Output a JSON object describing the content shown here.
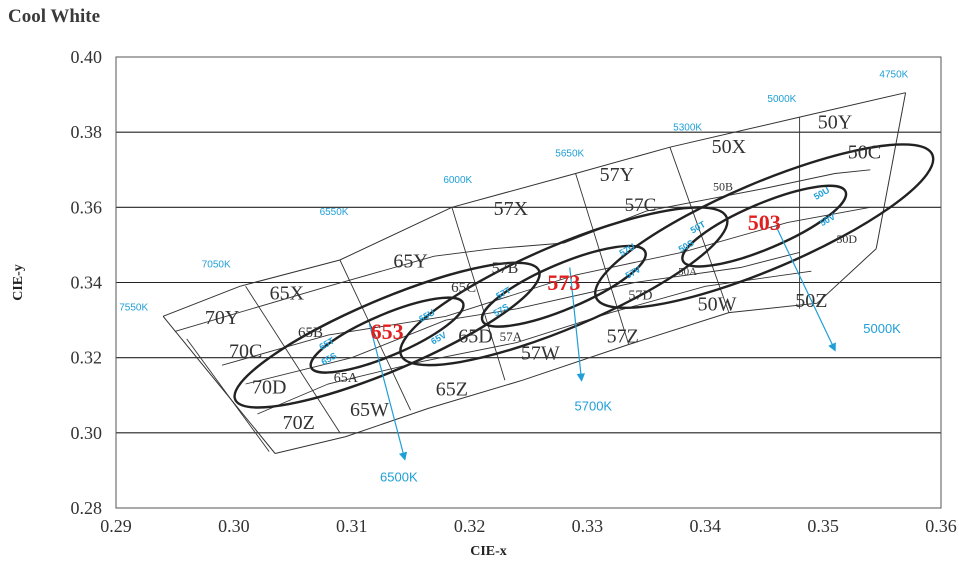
{
  "title": "Cool White",
  "chart_data": {
    "type": "scatter",
    "title": "Cool White",
    "xlabel": "CIE-x",
    "ylabel": "CIE-y",
    "xlim": [
      0.29,
      0.36
    ],
    "ylim": [
      0.28,
      0.4
    ],
    "x_ticks": [
      "0.29",
      "0.30",
      "0.31",
      "0.32",
      "0.33",
      "0.34",
      "0.35",
      "0.36"
    ],
    "y_ticks": [
      "0.28",
      "0.30",
      "0.32",
      "0.34",
      "0.36",
      "0.38",
      "0.40"
    ],
    "grid": "horizontal",
    "bounds_top": [
      [
        0.294,
        0.331
      ],
      [
        0.3005,
        0.339
      ],
      [
        0.309,
        0.346
      ],
      [
        0.3185,
        0.36
      ],
      [
        0.329,
        0.369
      ],
      [
        0.337,
        0.376
      ],
      [
        0.348,
        0.384
      ],
      [
        0.357,
        0.3905
      ]
    ],
    "bounds_bottom": [
      [
        0.3035,
        0.2945
      ],
      [
        0.3095,
        0.299
      ],
      [
        0.3165,
        0.3065
      ],
      [
        0.3245,
        0.314
      ],
      [
        0.3335,
        0.3235
      ],
      [
        0.342,
        0.332
      ],
      [
        0.3495,
        0.3345
      ],
      [
        0.3545,
        0.349
      ]
    ],
    "divider_lines": [
      [
        [
          0.295,
          0.327
        ],
        [
          0.308,
          0.339
        ],
        [
          0.317,
          0.347
        ],
        [
          0.322,
          0.349
        ],
        [
          0.328,
          0.3505
        ],
        [
          0.335,
          0.359
        ],
        [
          0.345,
          0.365
        ],
        [
          0.351,
          0.369
        ],
        [
          0.354,
          0.37
        ]
      ],
      [
        [
          0.299,
          0.318
        ],
        [
          0.308,
          0.326
        ],
        [
          0.318,
          0.331
        ],
        [
          0.329,
          0.342
        ],
        [
          0.338,
          0.348
        ],
        [
          0.347,
          0.356
        ],
        [
          0.354,
          0.36
        ]
      ],
      [
        [
          0.301,
          0.313
        ],
        [
          0.31,
          0.32
        ],
        [
          0.318,
          0.33
        ],
        [
          0.324,
          0.333
        ],
        [
          0.334,
          0.34
        ],
        [
          0.343,
          0.344
        ],
        [
          0.348,
          0.348
        ]
      ],
      [
        [
          0.302,
          0.305
        ],
        [
          0.308,
          0.313
        ],
        [
          0.316,
          0.319
        ],
        [
          0.324,
          0.324
        ],
        [
          0.332,
          0.332
        ],
        [
          0.34,
          0.339
        ],
        [
          0.349,
          0.343
        ]
      ],
      [
        [
          0.296,
          0.325
        ],
        [
          0.303,
          0.295
        ]
      ],
      [
        [
          0.301,
          0.339
        ],
        [
          0.309,
          0.3
        ]
      ],
      [
        [
          0.309,
          0.346
        ],
        [
          0.315,
          0.306
        ]
      ],
      [
        [
          0.3185,
          0.36
        ],
        [
          0.323,
          0.314
        ]
      ],
      [
        [
          0.329,
          0.369
        ],
        [
          0.3335,
          0.3235
        ]
      ],
      [
        [
          0.337,
          0.376
        ],
        [
          0.342,
          0.332
        ]
      ],
      [
        [
          0.348,
          0.384
        ],
        [
          0.348,
          0.333
        ]
      ]
    ],
    "ellipses": [
      {
        "name": "653",
        "cx": 0.313,
        "cy": 0.326,
        "rx": 0.007,
        "ry": 0.0055,
        "rot": -23
      },
      {
        "name": "653",
        "cx": 0.313,
        "cy": 0.326,
        "rx": 0.014,
        "ry": 0.0095,
        "rot": -23
      },
      {
        "name": "573",
        "cx": 0.328,
        "cy": 0.339,
        "rx": 0.0075,
        "ry": 0.006,
        "rot": -23
      },
      {
        "name": "573",
        "cx": 0.328,
        "cy": 0.339,
        "rx": 0.015,
        "ry": 0.011,
        "rot": -23
      },
      {
        "name": "503",
        "cx": 0.345,
        "cy": 0.355,
        "rx": 0.0075,
        "ry": 0.006,
        "rot": -23
      },
      {
        "name": "503",
        "cx": 0.345,
        "cy": 0.355,
        "rx": 0.0155,
        "ry": 0.0115,
        "rot": -23
      }
    ],
    "cct_labels": [
      {
        "text": "7550K",
        "x": 0.2915,
        "y": 0.3325
      },
      {
        "text": "7050K",
        "x": 0.2985,
        "y": 0.344
      },
      {
        "text": "6550K",
        "x": 0.3085,
        "y": 0.358
      },
      {
        "text": "6000K",
        "x": 0.319,
        "y": 0.3665
      },
      {
        "text": "5650K",
        "x": 0.3285,
        "y": 0.3735
      },
      {
        "text": "5300K",
        "x": 0.3385,
        "y": 0.3805
      },
      {
        "text": "5000K",
        "x": 0.3465,
        "y": 0.388
      },
      {
        "text": "4750K",
        "x": 0.356,
        "y": 0.3945
      }
    ],
    "bin_labels": [
      {
        "text": "70Y",
        "x": 0.299,
        "y": 0.329,
        "size": 20
      },
      {
        "text": "65X",
        "x": 0.3045,
        "y": 0.3355,
        "size": 20
      },
      {
        "text": "70C",
        "x": 0.301,
        "y": 0.32,
        "size": 20
      },
      {
        "text": "65B",
        "x": 0.3065,
        "y": 0.3255,
        "size": 15
      },
      {
        "text": "70D",
        "x": 0.303,
        "y": 0.3105,
        "size": 20
      },
      {
        "text": "65A",
        "x": 0.3095,
        "y": 0.3135,
        "size": 14
      },
      {
        "text": "70Z",
        "x": 0.3055,
        "y": 0.301,
        "size": 20
      },
      {
        "text": "65W",
        "x": 0.3115,
        "y": 0.3045,
        "size": 20
      },
      {
        "text": "65Z",
        "x": 0.3185,
        "y": 0.31,
        "size": 20
      },
      {
        "text": "65Y",
        "x": 0.315,
        "y": 0.344,
        "size": 20
      },
      {
        "text": "65C",
        "x": 0.3195,
        "y": 0.3375,
        "size": 15
      },
      {
        "text": "65D",
        "x": 0.3205,
        "y": 0.324,
        "size": 20
      },
      {
        "text": "57X",
        "x": 0.3235,
        "y": 0.358,
        "size": 20
      },
      {
        "text": "57B",
        "x": 0.323,
        "y": 0.3425,
        "size": 16
      },
      {
        "text": "57A",
        "x": 0.3235,
        "y": 0.3245,
        "size": 13
      },
      {
        "text": "57W",
        "x": 0.326,
        "y": 0.3195,
        "size": 20
      },
      {
        "text": "57Z",
        "x": 0.333,
        "y": 0.324,
        "size": 20
      },
      {
        "text": "57Y",
        "x": 0.3325,
        "y": 0.367,
        "size": 20
      },
      {
        "text": "57C",
        "x": 0.3345,
        "y": 0.359,
        "size": 19
      },
      {
        "text": "57D",
        "x": 0.3345,
        "y": 0.3355,
        "size": 14
      },
      {
        "text": "50A",
        "x": 0.3385,
        "y": 0.342,
        "size": 11
      },
      {
        "text": "50W",
        "x": 0.341,
        "y": 0.3325,
        "size": 20
      },
      {
        "text": "50Z",
        "x": 0.349,
        "y": 0.3335,
        "size": 20
      },
      {
        "text": "50X",
        "x": 0.342,
        "y": 0.3745,
        "size": 20
      },
      {
        "text": "50B",
        "x": 0.3415,
        "y": 0.3645,
        "size": 12
      },
      {
        "text": "50Y",
        "x": 0.351,
        "y": 0.381,
        "size": 20
      },
      {
        "text": "50C",
        "x": 0.3535,
        "y": 0.373,
        "size": 20
      },
      {
        "text": "50D",
        "x": 0.352,
        "y": 0.3505,
        "size": 12
      }
    ],
    "small_bin_labels": [
      {
        "text": "65U",
        "x": 0.3165,
        "y": 0.3305
      },
      {
        "text": "65T",
        "x": 0.308,
        "y": 0.323
      },
      {
        "text": "65S",
        "x": 0.3082,
        "y": 0.319
      },
      {
        "text": "65V",
        "x": 0.3175,
        "y": 0.3245
      },
      {
        "text": "57T",
        "x": 0.323,
        "y": 0.3365
      },
      {
        "text": "57S",
        "x": 0.3228,
        "y": 0.332
      },
      {
        "text": "57U",
        "x": 0.3335,
        "y": 0.348
      },
      {
        "text": "57V",
        "x": 0.334,
        "y": 0.342
      },
      {
        "text": "50T",
        "x": 0.3395,
        "y": 0.354
      },
      {
        "text": "50S",
        "x": 0.3385,
        "y": 0.349
      },
      {
        "text": "50U",
        "x": 0.35,
        "y": 0.363
      },
      {
        "text": "50V",
        "x": 0.3505,
        "y": 0.356
      }
    ],
    "centers": [
      {
        "text": "653",
        "x": 0.313,
        "y": 0.325
      },
      {
        "text": "573",
        "x": 0.328,
        "y": 0.338
      },
      {
        "text": "503",
        "x": 0.345,
        "y": 0.354
      }
    ],
    "arrows": [
      {
        "text": "6500K",
        "from": [
          0.3115,
          0.329
        ],
        "to": [
          0.3145,
          0.293
        ],
        "label_x": 0.314,
        "label_y": 0.287
      },
      {
        "text": "5700K",
        "from": [
          0.3285,
          0.344
        ],
        "to": [
          0.3295,
          0.314
        ],
        "label_x": 0.3305,
        "label_y": 0.306
      },
      {
        "text": "5000K",
        "from": [
          0.346,
          0.355
        ],
        "to": [
          0.351,
          0.322
        ],
        "label_x": 0.355,
        "label_y": 0.3265
      }
    ],
    "colors": {
      "cct": "#1f9fd6",
      "center": "#e02020",
      "line": "#333333",
      "ellipse": "#222222"
    }
  }
}
